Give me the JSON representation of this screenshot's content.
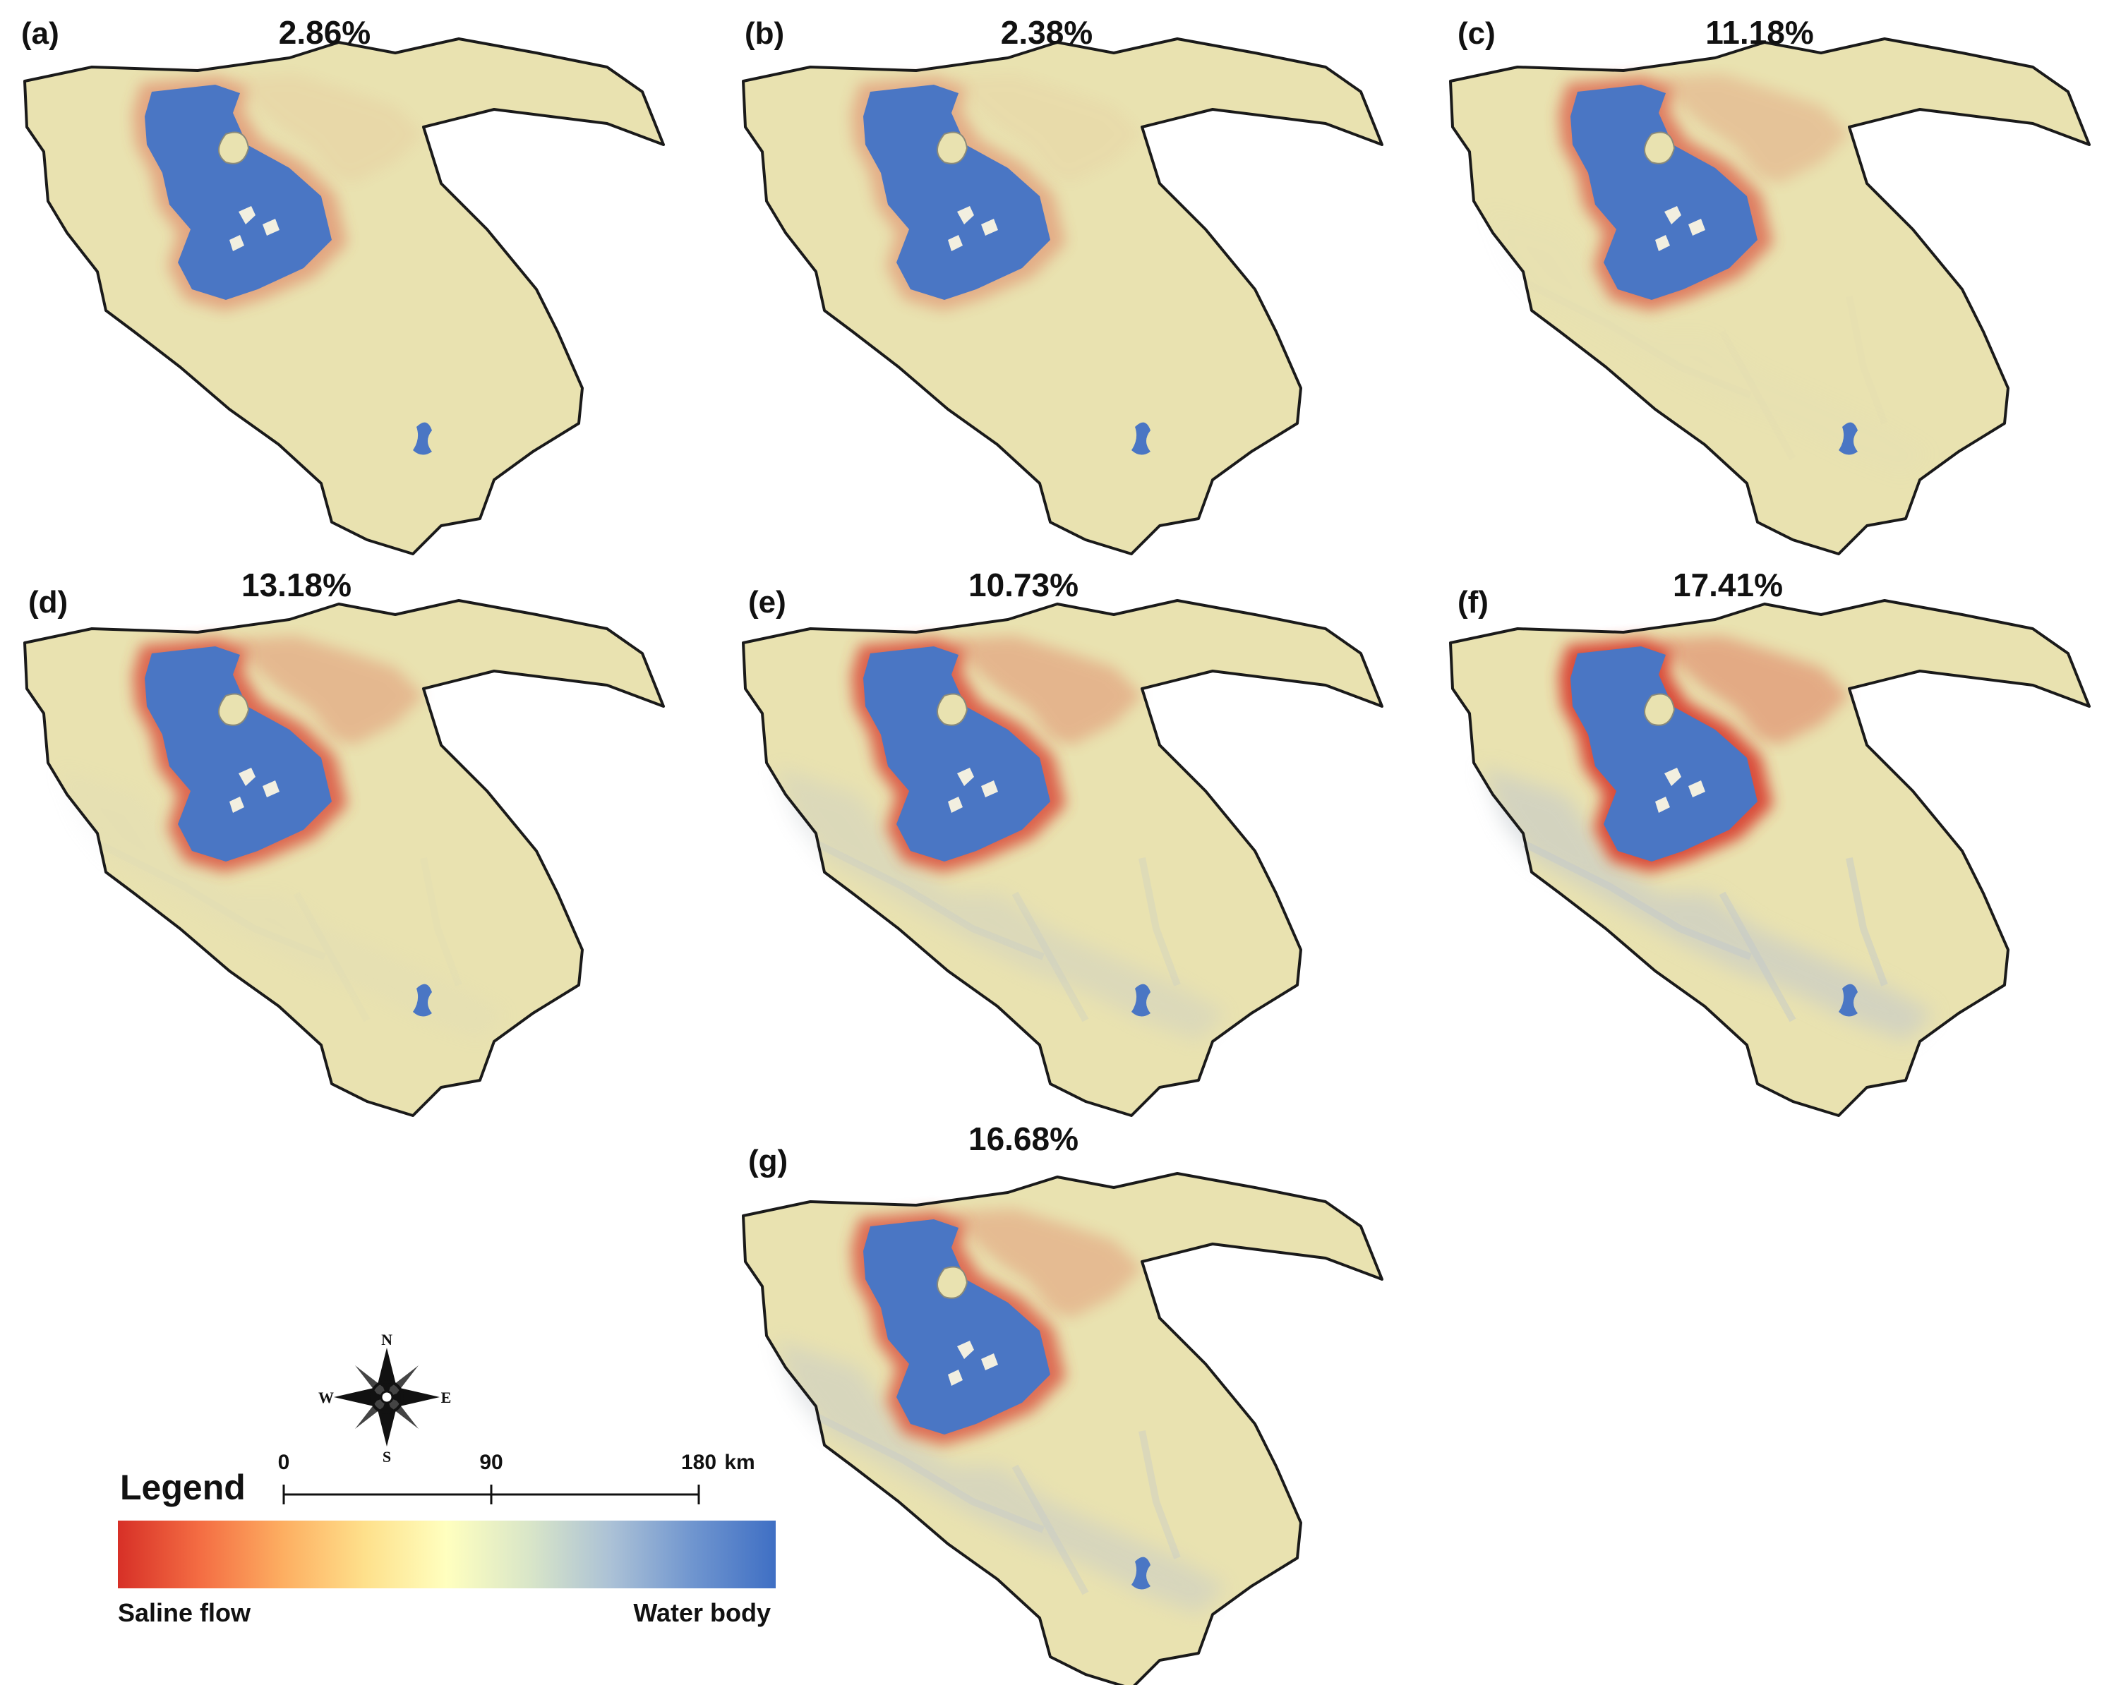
{
  "panels": [
    {
      "id": "a",
      "label": "(a)",
      "percent": "2.86%",
      "saline_level": 0.18,
      "gray_level": 0.0
    },
    {
      "id": "b",
      "label": "(b)",
      "percent": "2.38%",
      "saline_level": 0.12,
      "gray_level": 0.0
    },
    {
      "id": "c",
      "label": "(c)",
      "percent": "11.18%",
      "saline_level": 0.55,
      "gray_level": 0.05
    },
    {
      "id": "d",
      "label": "(d)",
      "percent": "13.18%",
      "saline_level": 0.75,
      "gray_level": 0.1
    },
    {
      "id": "e",
      "label": "(e)",
      "percent": "10.73%",
      "saline_level": 0.8,
      "gray_level": 0.45
    },
    {
      "id": "f",
      "label": "(f)",
      "percent": "17.41%",
      "saline_level": 1.0,
      "gray_level": 0.75
    },
    {
      "id": "g",
      "label": "(g)",
      "percent": "16.68%",
      "saline_level": 0.7,
      "gray_level": 0.6
    }
  ],
  "legend": {
    "title": "Legend",
    "low_label": "Saline flow",
    "high_label": "Water body",
    "colors": [
      "#d73027",
      "#f46d43",
      "#fdae61",
      "#fee08b",
      "#ffffbf",
      "#d9e6c8",
      "#abc1d6",
      "#6f95cf",
      "#3f6fc4"
    ]
  },
  "scale_bar": {
    "ticks": [
      "0",
      "90",
      "180"
    ],
    "unit": "km"
  },
  "north_arrow": {
    "icon": "compass-rose-icon",
    "letters": {
      "n": "N",
      "e": "E",
      "s": "S",
      "w": "W"
    }
  },
  "colors": {
    "land": "#e9e2b0",
    "lake": "#4a76c4",
    "saline": "#d94535",
    "gray_area": "#c2c8cc",
    "border": "#1a1a1a"
  }
}
